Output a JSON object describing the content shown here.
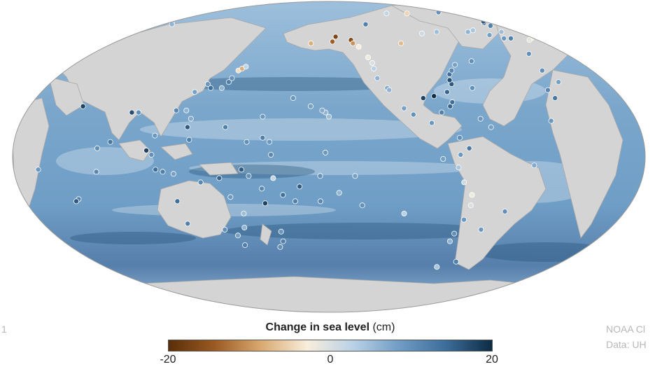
{
  "legend": {
    "title_bold": "Change in sea level",
    "title_unit": " (cm)",
    "ticks": [
      "-20",
      "0",
      "20"
    ],
    "scale": {
      "min": -20,
      "max": 20
    },
    "colors": [
      "#5a2e08",
      "#9b5a22",
      "#d9a970",
      "#f8eedc",
      "#b9d1e6",
      "#6f9cc4",
      "#3d6d9a",
      "#0d2c45"
    ]
  },
  "credit": {
    "line1": "NOAA Cl",
    "line2": "Data: UH"
  },
  "left_fragment": "1",
  "map": {
    "ocean_color": "#7ea9cc",
    "land_color": "#d4d4d4",
    "border_color": "#a8a8a8"
  },
  "stations": [
    {
      "lon": 137,
      "lat": 33,
      "value": 6
    },
    {
      "lon": 141,
      "lat": 38,
      "value": 10
    },
    {
      "lon": 143,
      "lat": 42,
      "value": -4
    },
    {
      "lon": 145,
      "lat": 43,
      "value": -8
    },
    {
      "lon": 140,
      "lat": 36,
      "value": 12
    },
    {
      "lon": 147,
      "lat": 44,
      "value": 2
    },
    {
      "lon": 130,
      "lat": 33,
      "value": 14
    },
    {
      "lon": 127,
      "lat": 35,
      "value": 9
    },
    {
      "lon": 121,
      "lat": 31,
      "value": 8
    },
    {
      "lon": 114,
      "lat": 22,
      "value": 11
    },
    {
      "lon": 120,
      "lat": 22,
      "value": 6
    },
    {
      "lon": 123,
      "lat": 14,
      "value": 16
    },
    {
      "lon": 125,
      "lat": 8,
      "value": 12
    },
    {
      "lon": 124,
      "lat": 18,
      "value": 7
    },
    {
      "lon": 105,
      "lat": 10,
      "value": 9
    },
    {
      "lon": 101,
      "lat": 3,
      "value": 18
    },
    {
      "lon": 104,
      "lat": 1,
      "value": 10
    },
    {
      "lon": 110,
      "lat": -7,
      "value": 12
    },
    {
      "lon": 116,
      "lat": -8,
      "value": 8
    },
    {
      "lon": 106,
      "lat": -6,
      "value": 14
    },
    {
      "lon": 80,
      "lat": 7,
      "value": 13
    },
    {
      "lon": 73,
      "lat": 4,
      "value": 10
    },
    {
      "lon": 72,
      "lat": -7,
      "value": 11
    },
    {
      "lon": 57,
      "lat": -20,
      "value": 12
    },
    {
      "lon": 55,
      "lat": -21,
      "value": 16
    },
    {
      "lon": 39,
      "lat": -6,
      "value": 9
    },
    {
      "lon": 57,
      "lat": 24,
      "value": 18
    },
    {
      "lon": 88,
      "lat": 21,
      "value": 17
    },
    {
      "lon": 92,
      "lat": 21,
      "value": 10
    },
    {
      "lon": 116,
      "lat": -32,
      "value": 12
    },
    {
      "lon": 115,
      "lat": -21,
      "value": 14
    },
    {
      "lon": 131,
      "lat": -12,
      "value": 11
    },
    {
      "lon": 142,
      "lat": -10,
      "value": 15
    },
    {
      "lon": 147,
      "lat": -19,
      "value": 9
    },
    {
      "lon": 153,
      "lat": -27,
      "value": 5
    },
    {
      "lon": 151,
      "lat": -34,
      "value": 6
    },
    {
      "lon": 147,
      "lat": -43,
      "value": 12
    },
    {
      "lon": 145,
      "lat": -38,
      "value": 8
    },
    {
      "lon": 138,
      "lat": -35,
      "value": 10
    },
    {
      "lon": 174,
      "lat": -36,
      "value": 9
    },
    {
      "lon": 174,
      "lat": -41,
      "value": 12
    },
    {
      "lon": 171,
      "lat": -44,
      "value": 10
    },
    {
      "lon": 155,
      "lat": -6,
      "value": 16
    },
    {
      "lon": 159,
      "lat": -9,
      "value": 10
    },
    {
      "lon": 166,
      "lat": -15,
      "value": 11
    },
    {
      "lon": 167,
      "lat": -22,
      "value": 18
    },
    {
      "lon": 178,
      "lat": -18,
      "value": 14
    },
    {
      "lon": 173,
      "lat": -10,
      "value": 2
    },
    {
      "lon": 172,
      "lat": 1,
      "value": 11
    },
    {
      "lon": 167,
      "lat": 9,
      "value": 12
    },
    {
      "lon": 171,
      "lat": 7,
      "value": 9
    },
    {
      "lon": 158,
      "lat": 7,
      "value": 10
    },
    {
      "lon": 145,
      "lat": 14,
      "value": 12
    },
    {
      "lon": 166,
      "lat": 19,
      "value": 9
    },
    {
      "lon": -172,
      "lat": -14,
      "value": 16
    },
    {
      "lon": -175,
      "lat": -21,
      "value": 12
    },
    {
      "lon": -160,
      "lat": -21,
      "value": 11
    },
    {
      "lon": -149,
      "lat": -17,
      "value": 6
    },
    {
      "lon": -140,
      "lat": -9,
      "value": 8
    },
    {
      "lon": -157,
      "lat": 2,
      "value": 9
    },
    {
      "lon": -160,
      "lat": -9,
      "value": 10
    },
    {
      "lon": -135,
      "lat": -23,
      "value": 10
    },
    {
      "lon": -109,
      "lat": -27,
      "value": 3
    },
    {
      "lon": -90,
      "lat": -1,
      "value": 8
    },
    {
      "lon": -155,
      "lat": 19,
      "value": 5
    },
    {
      "lon": -157,
      "lat": 21,
      "value": 6
    },
    {
      "lon": -159,
      "lat": 22,
      "value": 7
    },
    {
      "lon": -177,
      "lat": 28,
      "value": 9
    },
    {
      "lon": -166,
      "lat": 24,
      "value": 8
    },
    {
      "lon": -170,
      "lat": 57,
      "value": -8
    },
    {
      "lon": -152,
      "lat": 58,
      "value": -14
    },
    {
      "lon": -149,
      "lat": 61,
      "value": -17
    },
    {
      "lon": -136,
      "lat": 59,
      "value": -16
    },
    {
      "lon": -135,
      "lat": 57,
      "value": -10
    },
    {
      "lon": -131,
      "lat": 55,
      "value": -3
    },
    {
      "lon": -126,
      "lat": 49,
      "value": -2
    },
    {
      "lon": -124,
      "lat": 46,
      "value": 0
    },
    {
      "lon": -124,
      "lat": 43,
      "value": 3
    },
    {
      "lon": -123,
      "lat": 38,
      "value": 6
    },
    {
      "lon": -118,
      "lat": 33,
      "value": 7
    },
    {
      "lon": -117,
      "lat": 32,
      "value": 6
    },
    {
      "lon": -110,
      "lat": 23,
      "value": 8
    },
    {
      "lon": -105,
      "lat": 20,
      "value": 10
    },
    {
      "lon": -95,
      "lat": 16,
      "value": 9
    },
    {
      "lon": -80,
      "lat": 9,
      "value": 10
    },
    {
      "lon": -80,
      "lat": 1,
      "value": 9
    },
    {
      "lon": -81,
      "lat": -5,
      "value": 4
    },
    {
      "lon": -77,
      "lat": -12,
      "value": 1
    },
    {
      "lon": -71,
      "lat": -18,
      "value": -2
    },
    {
      "lon": -70,
      "lat": -23,
      "value": 0
    },
    {
      "lon": -71,
      "lat": -30,
      "value": 9
    },
    {
      "lon": -73,
      "lat": -37,
      "value": 10
    },
    {
      "lon": -73,
      "lat": -41,
      "value": 6
    },
    {
      "lon": -68,
      "lat": -55,
      "value": 4
    },
    {
      "lon": -57,
      "lat": -52,
      "value": 12
    },
    {
      "lon": -57,
      "lat": -35,
      "value": 9
    },
    {
      "lon": -48,
      "lat": -26,
      "value": 10
    },
    {
      "lon": -38,
      "lat": -4,
      "value": 7
    },
    {
      "lon": -97,
      "lat": 28,
      "value": 18
    },
    {
      "lon": -90,
      "lat": 29,
      "value": 20
    },
    {
      "lon": -82,
      "lat": 24,
      "value": 15
    },
    {
      "lon": -80,
      "lat": 26,
      "value": 14
    },
    {
      "lon": -81,
      "lat": 31,
      "value": 15
    },
    {
      "lon": -76,
      "lat": 35,
      "value": 16
    },
    {
      "lon": -76,
      "lat": 37,
      "value": 17
    },
    {
      "lon": -74,
      "lat": 40,
      "value": 14
    },
    {
      "lon": -71,
      "lat": 42,
      "value": 11
    },
    {
      "lon": -66,
      "lat": 45,
      "value": 8
    },
    {
      "lon": -64,
      "lat": 33,
      "value": 10
    },
    {
      "lon": -66,
      "lat": 18,
      "value": 9
    },
    {
      "lon": -61,
      "lat": 14,
      "value": 8
    },
    {
      "lon": -88,
      "lat": 21,
      "value": 12
    },
    {
      "lon": -95,
      "lat": 57,
      "value": -7
    },
    {
      "lon": -68,
      "lat": 63,
      "value": 1
    },
    {
      "lon": -52,
      "lat": 47,
      "value": 10
    },
    {
      "lon": -52,
      "lat": 64,
      "value": 5
    },
    {
      "lon": -22,
      "lat": 64,
      "value": 6
    },
    {
      "lon": -14,
      "lat": 65,
      "value": 4
    },
    {
      "lon": -8,
      "lat": 62,
      "value": 8
    },
    {
      "lon": -3,
      "lat": 51,
      "value": 10
    },
    {
      "lon": -1,
      "lat": 60,
      "value": 9
    },
    {
      "lon": 5,
      "lat": 60,
      "value": 12
    },
    {
      "lon": 10,
      "lat": 64,
      "value": 5
    },
    {
      "lon": 16,
      "lat": 68,
      "value": 12
    },
    {
      "lon": 19,
      "lat": 70,
      "value": 14
    },
    {
      "lon": 24,
      "lat": 71,
      "value": 16
    },
    {
      "lon": 29,
      "lat": 70,
      "value": 11
    },
    {
      "lon": 34,
      "lat": 69,
      "value": 6
    },
    {
      "lon": 23,
      "lat": 60,
      "value": -3
    },
    {
      "lon": 18,
      "lat": 59,
      "value": -1
    },
    {
      "lon": -9,
      "lat": 42,
      "value": 10
    },
    {
      "lon": -6,
      "lat": 36,
      "value": 8
    },
    {
      "lon": -17,
      "lat": 32,
      "value": 11
    },
    {
      "lon": -16,
      "lat": 28,
      "value": 13
    },
    {
      "lon": -25,
      "lat": 17,
      "value": 9
    },
    {
      "lon": -40,
      "lat": 77,
      "value": -5
    },
    {
      "lon": -70,
      "lat": 77,
      "value": 2
    },
    {
      "lon": 15,
      "lat": 78,
      "value": 10
    },
    {
      "lon": -115,
      "lat": 69,
      "value": 12
    },
    {
      "lon": -75,
      "lat": 4,
      "value": 13
    }
  ]
}
